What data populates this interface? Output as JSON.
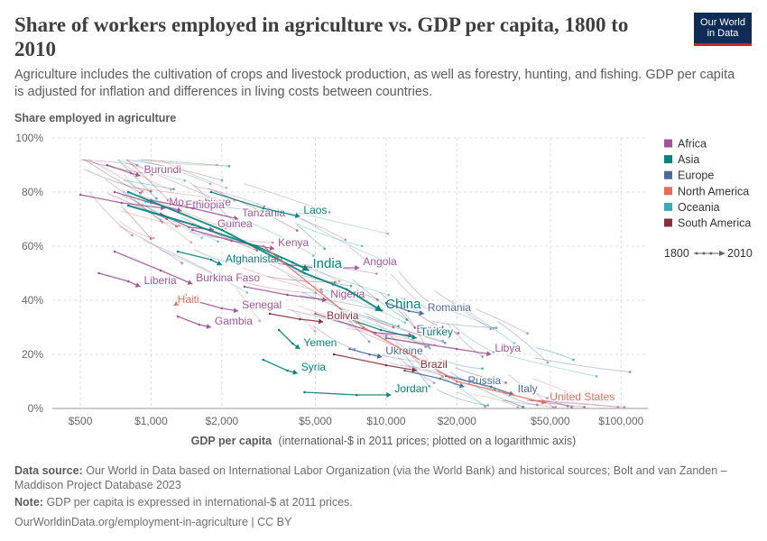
{
  "header": {
    "title": "Share of workers employed in agriculture vs. GDP per capita, 1800 to 2010",
    "subtitle": "Agriculture includes the cultivation of crops and livestock production, as well as forestry, hunting, and fishing. GDP per capita is adjusted for inflation and differences in living costs between countries.",
    "logo_line1": "Our World",
    "logo_line2": "in Data"
  },
  "footer": {
    "source_label": "Data source:",
    "source_text": "Our World in Data based on International Labor Organization (via the World Bank) and historical sources; Bolt and van Zanden – Maddison Project Database 2023",
    "note_label": "Note:",
    "note_text": "GDP per capita is expressed in international-$ at 2011 prices.",
    "url": "OurWorldinData.org/employment-in-agriculture | CC BY"
  },
  "colors": {
    "Africa": "#a2559c",
    "Asia": "#00847e",
    "Europe": "#4c6a9c",
    "North America": "#e56e5a",
    "Oceania": "#38aaba",
    "South America": "#883039"
  },
  "chart_data": {
    "type": "scatter",
    "ylabel": "Share employed in agriculture",
    "xlabel_bold": "GDP per capita",
    "xlabel_rest": "(international-$ in 2011 prices; plotted on a logarithmic axis)",
    "x_scale": "log",
    "xlim": [
      380,
      130000
    ],
    "ylim": [
      0,
      100
    ],
    "x_ticks": [
      {
        "value": 500,
        "label": "$500"
      },
      {
        "value": 1000,
        "label": "$1,000"
      },
      {
        "value": 2000,
        "label": "$2,000"
      },
      {
        "value": 5000,
        "label": "$5,000"
      },
      {
        "value": 10000,
        "label": "$10,000"
      },
      {
        "value": 20000,
        "label": "$20,000"
      },
      {
        "value": 50000,
        "label": "$50,000"
      },
      {
        "value": 100000,
        "label": "$100,000"
      }
    ],
    "y_ticks": [
      {
        "value": 0,
        "label": "0%"
      },
      {
        "value": 20,
        "label": "20%"
      },
      {
        "value": 40,
        "label": "40%"
      },
      {
        "value": 60,
        "label": "60%"
      },
      {
        "value": 80,
        "label": "80%"
      },
      {
        "value": 100,
        "label": "100%"
      }
    ],
    "grid": true,
    "legend": {
      "placement": "right",
      "entries": [
        "Africa",
        "Asia",
        "Europe",
        "North America",
        "Oceania",
        "South America"
      ],
      "time_start": "1800",
      "time_end": "2010"
    },
    "series": [
      {
        "name": "Burundi",
        "region": "Africa",
        "points": [
          [
            650,
            90
          ],
          [
            820,
            87
          ],
          [
            900,
            86
          ]
        ],
        "label_size": "small"
      },
      {
        "name": "Mozambique",
        "region": "Africa",
        "points": [
          [
            500,
            79
          ],
          [
            750,
            76
          ],
          [
            1150,
            74
          ]
        ],
        "label_size": "small"
      },
      {
        "name": "Ethiopia",
        "region": "Africa",
        "points": [
          [
            700,
            80
          ],
          [
            1000,
            76
          ],
          [
            1350,
            73
          ]
        ],
        "label_size": "small"
      },
      {
        "name": "Tanzania",
        "region": "Africa",
        "points": [
          [
            1000,
            77
          ],
          [
            1500,
            74
          ],
          [
            2350,
            70
          ]
        ],
        "label_size": "small"
      },
      {
        "name": "Guinea",
        "region": "Africa",
        "points": [
          [
            1100,
            72
          ],
          [
            1450,
            67
          ],
          [
            1850,
            66
          ]
        ],
        "label_size": "small"
      },
      {
        "name": "Kenya",
        "region": "Africa",
        "points": [
          [
            1500,
            66
          ],
          [
            2200,
            62
          ],
          [
            3350,
            59
          ]
        ],
        "label_size": "small"
      },
      {
        "name": "Angola",
        "region": "Africa",
        "points": [
          [
            2500,
            55
          ],
          [
            5000,
            52
          ],
          [
            7700,
            52
          ]
        ],
        "label_size": "small"
      },
      {
        "name": "Burkina Faso",
        "region": "Africa",
        "points": [
          [
            700,
            58
          ],
          [
            1100,
            51
          ],
          [
            1500,
            46
          ]
        ],
        "label_size": "small"
      },
      {
        "name": "Liberia",
        "region": "Africa",
        "points": [
          [
            600,
            50
          ],
          [
            800,
            47
          ],
          [
            900,
            45
          ]
        ],
        "label_size": "small"
      },
      {
        "name": "Nigeria",
        "region": "Africa",
        "points": [
          [
            2500,
            45
          ],
          [
            3800,
            42
          ],
          [
            5600,
            40
          ]
        ],
        "label_size": "small"
      },
      {
        "name": "Senegal",
        "region": "Africa",
        "points": [
          [
            1500,
            40
          ],
          [
            2000,
            37
          ],
          [
            2350,
            36
          ]
        ],
        "label_size": "small"
      },
      {
        "name": "Gambia",
        "region": "Africa",
        "points": [
          [
            1300,
            34
          ],
          [
            1600,
            31
          ],
          [
            1800,
            30
          ]
        ],
        "label_size": "small"
      },
      {
        "name": "Egypt",
        "region": "Africa",
        "points": [
          [
            5000,
            35
          ],
          [
            9000,
            28
          ],
          [
            13000,
            27
          ]
        ],
        "label_size": "small"
      },
      {
        "name": "Libya",
        "region": "Africa",
        "points": [
          [
            10000,
            26
          ],
          [
            20000,
            22
          ],
          [
            28000,
            20
          ]
        ],
        "label_size": "small"
      },
      {
        "name": "Laos",
        "region": "Asia",
        "points": [
          [
            1800,
            80
          ],
          [
            3000,
            74
          ],
          [
            4300,
            71
          ]
        ],
        "label_size": "small"
      },
      {
        "name": "Afghanistan",
        "region": "Asia",
        "points": [
          [
            1300,
            58
          ],
          [
            1800,
            55
          ],
          [
            2000,
            53
          ]
        ],
        "label_size": "small"
      },
      {
        "name": "India",
        "region": "Asia",
        "points": [
          [
            800,
            75
          ],
          [
            1500,
            68
          ],
          [
            2800,
            60
          ],
          [
            4000,
            54
          ],
          [
            4700,
            51
          ]
        ],
        "label_size": "large"
      },
      {
        "name": "China",
        "region": "Asia",
        "points": [
          [
            800,
            80
          ],
          [
            2000,
            66
          ],
          [
            4500,
            50
          ],
          [
            6800,
            44
          ],
          [
            9600,
            36
          ]
        ],
        "label_size": "large"
      },
      {
        "name": "Turkey",
        "region": "Asia",
        "points": [
          [
            6000,
            35
          ],
          [
            9500,
            29
          ],
          [
            13500,
            26
          ]
        ],
        "label_size": "small"
      },
      {
        "name": "Yemen",
        "region": "Asia",
        "points": [
          [
            3500,
            29
          ],
          [
            4000,
            24
          ],
          [
            4300,
            22
          ]
        ],
        "label_size": "small"
      },
      {
        "name": "Syria",
        "region": "Asia",
        "points": [
          [
            3000,
            18
          ],
          [
            3800,
            14
          ],
          [
            4200,
            13
          ]
        ],
        "label_size": "small"
      },
      {
        "name": "Jordan",
        "region": "Asia",
        "points": [
          [
            4500,
            6
          ],
          [
            7500,
            5
          ],
          [
            10500,
            5
          ]
        ],
        "label_size": "small"
      },
      {
        "name": "Romania",
        "region": "Europe",
        "points": [
          [
            10000,
            39
          ],
          [
            12500,
            36
          ],
          [
            14500,
            35
          ]
        ],
        "label_size": "small"
      },
      {
        "name": "Ukraine",
        "region": "Europe",
        "points": [
          [
            7000,
            22
          ],
          [
            8500,
            20
          ],
          [
            9600,
            19
          ]
        ],
        "label_size": "small"
      },
      {
        "name": "Russia",
        "region": "Europe",
        "points": [
          [
            12000,
            14
          ],
          [
            17000,
            11
          ],
          [
            21500,
            8
          ]
        ],
        "label_size": "small"
      },
      {
        "name": "Italy",
        "region": "Europe",
        "points": [
          [
            18000,
            12
          ],
          [
            28000,
            8
          ],
          [
            35000,
            5
          ]
        ],
        "label_size": "small"
      },
      {
        "name": "Haiti",
        "region": "North America",
        "points": [
          [
            1400,
            42
          ],
          [
            1350,
            40
          ],
          [
            1250,
            38
          ]
        ],
        "label_size": "small"
      },
      {
        "name": "United States",
        "region": "North America",
        "points": [
          [
            3000,
            60
          ],
          [
            8000,
            30
          ],
          [
            20000,
            10
          ],
          [
            48000,
            2
          ]
        ],
        "label_size": "small"
      },
      {
        "name": "Bolivia",
        "region": "South America",
        "points": [
          [
            3200,
            35
          ],
          [
            4300,
            33
          ],
          [
            5400,
            32
          ]
        ],
        "label_size": "small"
      },
      {
        "name": "Brazil",
        "region": "South America",
        "points": [
          [
            6000,
            20
          ],
          [
            10000,
            16
          ],
          [
            13500,
            14
          ]
        ],
        "label_size": "small"
      }
    ]
  }
}
